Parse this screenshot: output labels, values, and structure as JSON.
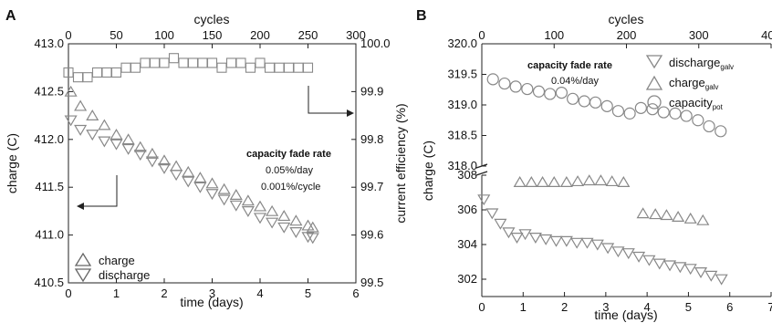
{
  "chart_data": [
    {
      "panel": "A",
      "type": "scatter",
      "xlabel": "time (days)",
      "x2label": "cycles",
      "ylabel": "charge (C)",
      "y2label": "current efficiency (%)",
      "xlim": [
        0,
        6
      ],
      "x2lim": [
        0,
        300
      ],
      "ylim": [
        410.5,
        413.0
      ],
      "y2lim": [
        99.5,
        100.0
      ],
      "xticks": [
        "0",
        "1",
        "2",
        "3",
        "4",
        "5",
        "6"
      ],
      "x2ticks": [
        "0",
        "50",
        "100",
        "150",
        "200",
        "250",
        "300"
      ],
      "yticks": [
        "410.5",
        "411.0",
        "411.5",
        "412.0",
        "412.5",
        "413.0"
      ],
      "y2ticks": [
        "99.5",
        "99.6",
        "99.7",
        "99.8",
        "99.9",
        "100.0"
      ],
      "annotations": {
        "title": "capacity fade rate",
        "line1": "0.05%/day",
        "line2": "0.001%/cycle"
      },
      "legend": [
        {
          "marker": "triangle-up",
          "label": "charge"
        },
        {
          "marker": "triangle-down",
          "label": "discharge"
        }
      ],
      "series": [
        {
          "name": "charge",
          "axis": "left",
          "marker": "triangle-up",
          "x": [
            0.05,
            0.25,
            0.5,
            0.75,
            1.0,
            1.25,
            1.5,
            1.75,
            2.0,
            2.25,
            2.5,
            2.75,
            3.0,
            3.25,
            3.5,
            3.75,
            4.0,
            4.25,
            4.5,
            4.75,
            5.0,
            5.1
          ],
          "y": [
            412.5,
            412.35,
            412.25,
            412.15,
            412.05,
            412.0,
            411.92,
            411.85,
            411.78,
            411.72,
            411.66,
            411.6,
            411.54,
            411.48,
            411.42,
            411.36,
            411.3,
            411.25,
            411.2,
            411.15,
            411.1,
            411.08
          ]
        },
        {
          "name": "discharge",
          "axis": "left",
          "marker": "triangle-down",
          "x": [
            0.05,
            0.25,
            0.5,
            0.75,
            1.0,
            1.25,
            1.5,
            1.75,
            2.0,
            2.25,
            2.5,
            2.75,
            3.0,
            3.25,
            3.5,
            3.75,
            4.0,
            4.25,
            4.5,
            4.75,
            5.0,
            5.1
          ],
          "y": [
            412.2,
            412.1,
            412.05,
            411.98,
            411.95,
            411.9,
            411.84,
            411.77,
            411.7,
            411.63,
            411.56,
            411.5,
            411.43,
            411.37,
            411.31,
            411.25,
            411.18,
            411.13,
            411.08,
            411.03,
            410.98,
            410.97
          ]
        },
        {
          "name": "current efficiency",
          "axis": "right",
          "marker": "square",
          "x": [
            0,
            10,
            20,
            30,
            40,
            50,
            60,
            70,
            80,
            90,
            100,
            110,
            120,
            130,
            140,
            150,
            160,
            170,
            180,
            190,
            200,
            210,
            220,
            230,
            240,
            250
          ],
          "y": [
            99.94,
            99.93,
            99.93,
            99.94,
            99.94,
            99.94,
            99.95,
            99.95,
            99.96,
            99.96,
            99.96,
            99.97,
            99.96,
            99.96,
            99.96,
            99.96,
            99.95,
            99.96,
            99.96,
            99.95,
            99.96,
            99.95,
            99.95,
            99.95,
            99.95,
            99.95
          ]
        }
      ]
    },
    {
      "panel": "B",
      "type": "scatter",
      "xlabel": "time (days)",
      "x2label": "cycles",
      "ylabel": "charge (C)",
      "xlim": [
        0,
        7
      ],
      "x2lim": [
        0,
        400
      ],
      "ylim_upper": [
        318.0,
        320.0
      ],
      "ylim_lower": [
        301.0,
        308.0
      ],
      "xticks": [
        "0",
        "1",
        "2",
        "3",
        "4",
        "5",
        "6",
        "7"
      ],
      "x2ticks": [
        "0",
        "100",
        "200",
        "300",
        "400"
      ],
      "yticks_upper": [
        "318.0",
        "318.5",
        "319.0",
        "319.5",
        "320.0"
      ],
      "yticks_lower": [
        "302",
        "304",
        "306",
        "308"
      ],
      "annotations": {
        "title": "capacity fade rate",
        "line1": "0.04%/day"
      },
      "legend": [
        {
          "marker": "triangle-down",
          "label": "discharge",
          "sub": "galv"
        },
        {
          "marker": "triangle-up",
          "label": "charge",
          "sub": "galv"
        },
        {
          "marker": "circle",
          "label": "capacity",
          "sub": "pot"
        }
      ],
      "series": [
        {
          "name": "capacity_pot",
          "marker": "circle",
          "x": [
            0.27,
            0.55,
            0.82,
            1.1,
            1.38,
            1.65,
            1.93,
            2.2,
            2.48,
            2.75,
            3.03,
            3.3,
            3.58,
            3.85,
            4.13,
            4.4,
            4.68,
            4.95,
            5.23,
            5.5,
            5.78
          ],
          "y": [
            319.42,
            319.35,
            319.3,
            319.26,
            319.22,
            319.18,
            319.2,
            319.1,
            319.06,
            319.04,
            318.98,
            318.9,
            318.86,
            318.95,
            318.93,
            318.88,
            318.86,
            318.82,
            318.75,
            318.65,
            318.57
          ]
        },
        {
          "name": "charge_galv",
          "marker": "triangle-up",
          "x": [
            0.92,
            1.2,
            1.47,
            1.75,
            2.05,
            2.32,
            2.6,
            2.88,
            3.15,
            3.43,
            3.9,
            4.2,
            4.47,
            4.75,
            5.05,
            5.35
          ],
          "y": [
            307.6,
            307.6,
            307.6,
            307.6,
            307.6,
            307.65,
            307.7,
            307.7,
            307.65,
            307.6,
            305.8,
            305.75,
            305.7,
            305.6,
            305.5,
            305.4
          ]
        },
        {
          "name": "discharge_galv",
          "marker": "triangle-down",
          "x": [
            0.05,
            0.25,
            0.45,
            0.65,
            0.85,
            1.05,
            1.3,
            1.55,
            1.8,
            2.05,
            2.3,
            2.55,
            2.8,
            3.05,
            3.3,
            3.55,
            3.8,
            4.05,
            4.3,
            4.55,
            4.8,
            5.05,
            5.3,
            5.55,
            5.8
          ],
          "y": [
            306.6,
            305.8,
            305.2,
            304.7,
            304.4,
            304.6,
            304.4,
            304.3,
            304.2,
            304.2,
            304.1,
            304.1,
            304.0,
            303.8,
            303.6,
            303.5,
            303.3,
            303.1,
            302.9,
            302.8,
            302.7,
            302.6,
            302.4,
            302.2,
            302.0
          ]
        }
      ]
    }
  ],
  "panels": {
    "a_letter": "A",
    "b_letter": "B"
  }
}
